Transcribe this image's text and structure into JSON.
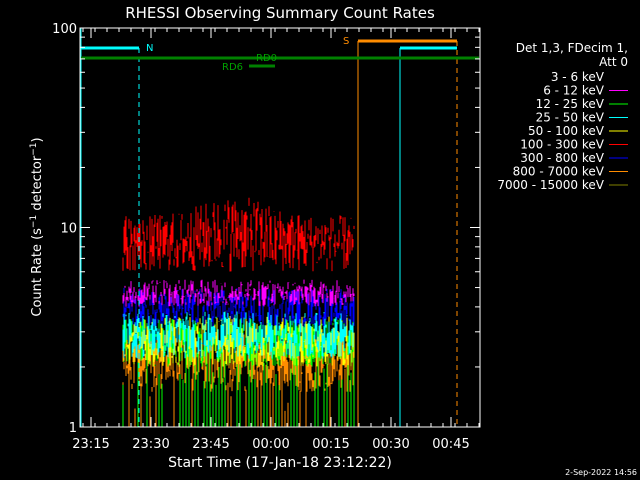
{
  "chart_data": {
    "type": "line",
    "title": "RHESSI Observing Summary Count Rates",
    "xlabel": "Start Time (17-Jan-18 23:12:22)",
    "ylabel_main": "Count Rate (s",
    "ylabel_sup1": "−1",
    "ylabel_mid": " detector",
    "ylabel_sup2": "−1",
    "ylabel_end": ")",
    "yscale": "log",
    "ylim": [
      1,
      100
    ],
    "y_ticks": [
      {
        "value": 1,
        "label": "1"
      },
      {
        "value": 10,
        "label": "10"
      },
      {
        "value": 100,
        "label": "100"
      }
    ],
    "x_ticks": [
      "23:15",
      "23:30",
      "23:45",
      "00:00",
      "00:15",
      "00:30",
      "00:45"
    ],
    "grid": false,
    "legend_position": "right",
    "legend_header": [
      "Det 1,3, FDecim 1,",
      "Att 0"
    ],
    "legend": [
      {
        "label": "3 - 6 keV",
        "color": "#000000"
      },
      {
        "label": "6 - 12 keV",
        "color": "#ff00ff"
      },
      {
        "label": "12 - 25 keV",
        "color": "#00ff00"
      },
      {
        "label": "25 - 50 keV",
        "color": "#00ffff"
      },
      {
        "label": "50 - 100 keV",
        "color": "#ffff00"
      },
      {
        "label": "100 - 300 keV",
        "color": "#ff0000"
      },
      {
        "label": "300 - 800 keV",
        "color": "#0000ff"
      },
      {
        "label": "800 - 7000 keV",
        "color": "#ff8c00"
      },
      {
        "label": "7000 - 15000 keV",
        "color": "#808000"
      }
    ],
    "series_bands": [
      {
        "name": "800 - 7000 keV",
        "color": "#ff8c00",
        "lo": 1.5,
        "hi": 3.0
      },
      {
        "name": "12 - 25 keV",
        "color": "#00ff00",
        "lo": 2.0,
        "hi": 3.5
      },
      {
        "name": "50 - 100 keV",
        "color": "#ffff00",
        "lo": 2.0,
        "hi": 3.6
      },
      {
        "name": "25 - 50 keV",
        "color": "#00ffff",
        "lo": 2.2,
        "hi": 3.8
      },
      {
        "name": "300 - 800 keV",
        "color": "#0000ff",
        "lo": 3.2,
        "hi": 5.0
      },
      {
        "name": "6 - 12 keV",
        "color": "#ff00ff",
        "lo": 4.0,
        "hi": 5.5
      },
      {
        "name": "3 - 6 keV",
        "color": "#000000",
        "lo": 4.5,
        "hi": 8.0
      },
      {
        "name": "100 - 300 keV",
        "color": "#ff0000",
        "lo": 6.0,
        "hi": 11.5
      }
    ],
    "flags": {
      "n_label": "N",
      "s_label": "S",
      "rd0_label": "RD0",
      "rd6_label": "RD6"
    }
  },
  "footer_date": "2-Sep-2022 14:56"
}
